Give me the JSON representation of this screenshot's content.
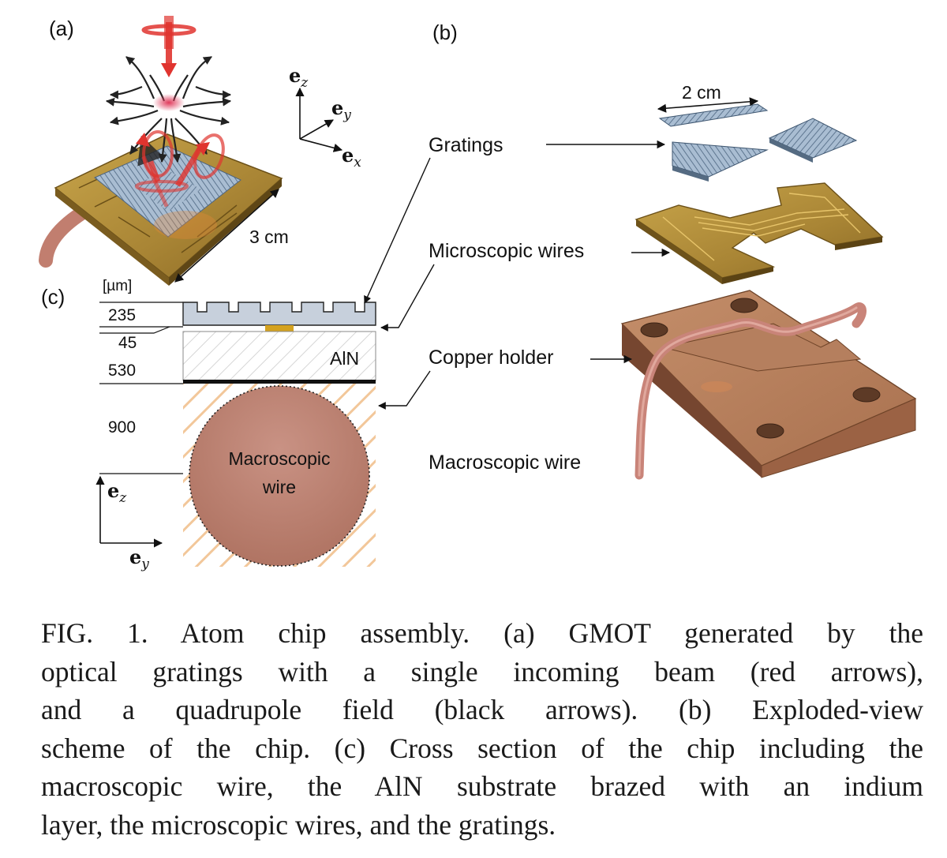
{
  "panels": {
    "a": {
      "label": "(a)",
      "dimension": "3 cm"
    },
    "b": {
      "label": "(b)",
      "dimension": "2 cm",
      "labels": {
        "gratings": "Gratings",
        "microscopic_wires": "Microscopic wires",
        "copper_holder": "Copper holder",
        "macroscopic_wire": "Macroscopic wire"
      }
    },
    "c": {
      "label": "(c)",
      "unit": "[µm]",
      "thicknesses": [
        "235",
        "45",
        "530",
        "900"
      ],
      "substrate": "AlN",
      "wire_label_line1": "Macroscopic",
      "wire_label_line2": "wire"
    }
  },
  "axes_a": {
    "z": "e",
    "z_sub": "z",
    "y": "e",
    "y_sub": "y",
    "x": "e",
    "x_sub": "x"
  },
  "axes_c": {
    "z": "e",
    "z_sub": "z",
    "y": "e",
    "y_sub": "y"
  },
  "colors": {
    "grating": "#9fb3c8",
    "gold": "#b8963a",
    "copper": "#b87f5c",
    "laser": "#e0342f",
    "wire": "#c98479"
  },
  "caption": {
    "lines": [
      "FIG. 1.  Atom chip assembly.  (a) GMOT generated by the",
      "optical gratings with a single incoming beam (red arrows),",
      "and a quadrupole field (black arrows).  (b) Exploded-view",
      "scheme of the chip. (c) Cross section of the chip including the",
      "macroscopic wire, the AlN substrate brazed with an indium",
      "layer, the microscopic wires, and the gratings."
    ]
  }
}
